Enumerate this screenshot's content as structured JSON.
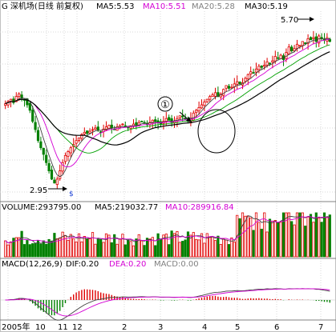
{
  "chart_data": {
    "type": "candlestick",
    "header": {
      "stock": "G 深机场(日线 前复权)",
      "ma5": "MA5:5.53",
      "ma10": "MA10:5.51",
      "ma20": "MA20:5.28",
      "ma30": "MA30:5.19"
    },
    "annotations": {
      "high_price": "5.70",
      "low_price": "2.95",
      "circle_marker": "①"
    },
    "volume_header": {
      "volume": "VOLUME:293795.00",
      "ma5": "MA5:219032.77",
      "ma10": "MA10:289916.84"
    },
    "macd_header": {
      "macd": "MACD(12,26,9)",
      "dif": "DIF:0.20",
      "dea": "DEA:0.20",
      "macd_value": "MACD:0.00"
    },
    "x_axis": {
      "labels": [
        "2005年",
        "10",
        "11",
        "12",
        "2",
        "3",
        "4",
        "5",
        "6",
        "7"
      ]
    },
    "price_range": [
      2.7,
      6.1
    ],
    "close_path": [
      4.42,
      4.46,
      4.5,
      4.44,
      4.55,
      4.6,
      4.52,
      4.48,
      4.4,
      4.3,
      4.1,
      3.95,
      3.75,
      3.62,
      3.5,
      3.35,
      3.2,
      3.05,
      2.98,
      3.05,
      3.2,
      3.35,
      3.48,
      3.55,
      3.62,
      3.68,
      3.75,
      3.8,
      3.86,
      3.9,
      3.88,
      3.92,
      3.95,
      3.98,
      3.94,
      3.9,
      3.96,
      4.0,
      4.03,
      3.98,
      3.95,
      4.0,
      4.02,
      4.05,
      4.0,
      3.98,
      4.02,
      4.05,
      4.03,
      4.08,
      4.1,
      4.06,
      4.04,
      4.08,
      4.12,
      4.1,
      4.07,
      4.05,
      4.1,
      4.15,
      4.12,
      4.08,
      4.1,
      4.15,
      4.2,
      4.18,
      4.14,
      4.1,
      4.15,
      4.25,
      4.3,
      4.35,
      4.4,
      4.45,
      4.5,
      4.55,
      4.58,
      4.62,
      4.55,
      4.6,
      4.68,
      4.75,
      4.7,
      4.72,
      4.78,
      4.82,
      4.78,
      4.8,
      4.88,
      4.95,
      5.0,
      4.98,
      5.05,
      5.1,
      5.08,
      5.12,
      5.18,
      5.15,
      5.2,
      5.28,
      5.25,
      5.3,
      5.22,
      5.35,
      5.45,
      5.38,
      5.42,
      5.5,
      5.48,
      5.55,
      5.52,
      5.6,
      5.58,
      5.62,
      5.55,
      5.65,
      5.6,
      5.58,
      5.62,
      5.55
    ]
  }
}
